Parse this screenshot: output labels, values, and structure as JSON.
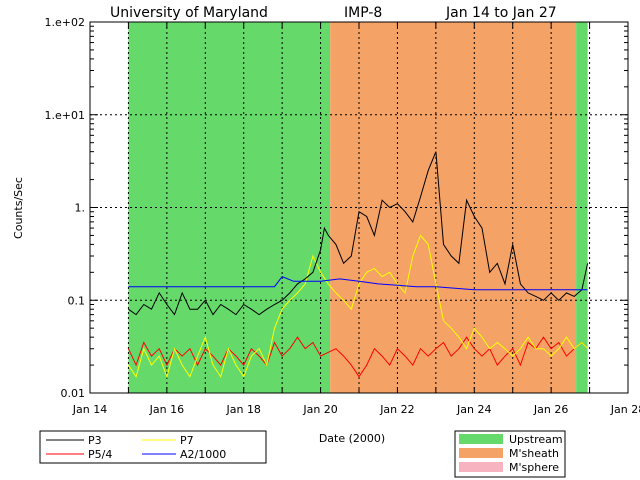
{
  "chart_data": {
    "type": "line",
    "title_parts": [
      "University of Maryland",
      "IMP-8",
      "Jan 14 to Jan 27"
    ],
    "xlabel": "Date (2000)",
    "ylabel": "Counts/Sec",
    "x_unit": "day of January 2000",
    "xlim": [
      14,
      28
    ],
    "ylim": [
      0.01,
      100
    ],
    "yscale": "log",
    "grid": true,
    "x_ticks": [
      {
        "value": 14,
        "label": "Jan 14"
      },
      {
        "value": 16,
        "label": "Jan 16"
      },
      {
        "value": 18,
        "label": "Jan 18"
      },
      {
        "value": 20,
        "label": "Jan 20"
      },
      {
        "value": 22,
        "label": "Jan 22"
      },
      {
        "value": 24,
        "label": "Jan 24"
      },
      {
        "value": 26,
        "label": "Jan 26"
      },
      {
        "value": 28,
        "label": "Jan 28"
      }
    ],
    "y_ticks": [
      {
        "value": 0.01,
        "label": "0.01"
      },
      {
        "value": 0.1,
        "label": "0.1"
      },
      {
        "value": 1,
        "label": "1."
      },
      {
        "value": 10,
        "label": "1.e+01"
      },
      {
        "value": 100,
        "label": "1.e+02"
      }
    ],
    "regions": [
      {
        "name": "Upstream",
        "start": 15.0,
        "end": 20.25,
        "color": "#66d96b"
      },
      {
        "name": "M'sheath",
        "start": 20.25,
        "end": 26.65,
        "color": "#f4a266"
      },
      {
        "name": "Upstream",
        "start": 26.65,
        "end": 26.95,
        "color": "#66d96b"
      }
    ],
    "region_legend": [
      {
        "label": "Upstream",
        "color": "#66d96b"
      },
      {
        "label": "M'sheath",
        "color": "#f4a266"
      },
      {
        "label": "M'sphere",
        "color": "#f7b3c0"
      }
    ],
    "series": [
      {
        "name": "P3",
        "color": "#000000",
        "x": [
          15.0,
          15.2,
          15.4,
          15.6,
          15.8,
          16.0,
          16.2,
          16.4,
          16.6,
          16.8,
          17.0,
          17.2,
          17.4,
          17.6,
          17.8,
          18.0,
          18.2,
          18.4,
          18.6,
          18.8,
          19.0,
          19.2,
          19.4,
          19.6,
          19.8,
          20.0,
          20.1,
          20.2,
          20.4,
          20.6,
          20.8,
          21.0,
          21.2,
          21.4,
          21.6,
          21.8,
          22.0,
          22.2,
          22.4,
          22.6,
          22.8,
          23.0,
          23.2,
          23.4,
          23.6,
          23.8,
          24.0,
          24.2,
          24.4,
          24.6,
          24.8,
          25.0,
          25.2,
          25.4,
          25.6,
          25.8,
          26.0,
          26.2,
          26.4,
          26.6,
          26.8,
          26.95
        ],
        "y": [
          0.08,
          0.07,
          0.09,
          0.08,
          0.12,
          0.09,
          0.07,
          0.12,
          0.08,
          0.08,
          0.1,
          0.07,
          0.09,
          0.08,
          0.07,
          0.09,
          0.08,
          0.07,
          0.08,
          0.09,
          0.1,
          0.12,
          0.15,
          0.17,
          0.2,
          0.35,
          0.6,
          0.5,
          0.4,
          0.25,
          0.3,
          0.9,
          0.8,
          0.5,
          1.2,
          1.0,
          1.1,
          0.9,
          0.7,
          1.3,
          2.5,
          4.0,
          0.4,
          0.3,
          0.25,
          1.2,
          0.8,
          0.6,
          0.2,
          0.25,
          0.15,
          0.4,
          0.15,
          0.12,
          0.11,
          0.1,
          0.12,
          0.1,
          0.12,
          0.11,
          0.13,
          0.25
        ]
      },
      {
        "name": "P5/4",
        "color": "#ff0000",
        "x": [
          15.0,
          15.2,
          15.4,
          15.6,
          15.8,
          16.0,
          16.2,
          16.4,
          16.6,
          16.8,
          17.0,
          17.2,
          17.4,
          17.6,
          17.8,
          18.0,
          18.2,
          18.4,
          18.6,
          18.8,
          19.0,
          19.2,
          19.4,
          19.6,
          19.8,
          20.0,
          20.4,
          20.6,
          20.8,
          21.0,
          21.2,
          21.4,
          21.6,
          21.8,
          22.0,
          22.2,
          22.4,
          22.6,
          22.8,
          23.0,
          23.2,
          23.4,
          23.6,
          23.8,
          24.0,
          24.2,
          24.4,
          24.6,
          24.8,
          25.0,
          25.2,
          25.4,
          25.6,
          25.8,
          26.0,
          26.2,
          26.4,
          26.6,
          26.8,
          26.95
        ],
        "y": [
          0.03,
          0.02,
          0.035,
          0.025,
          0.03,
          0.02,
          0.03,
          0.025,
          0.03,
          0.02,
          0.03,
          0.025,
          0.02,
          0.03,
          0.025,
          0.02,
          0.03,
          0.025,
          0.02,
          0.035,
          0.025,
          0.03,
          0.04,
          0.03,
          0.035,
          0.025,
          0.03,
          0.025,
          0.02,
          0.015,
          0.02,
          0.03,
          0.025,
          0.02,
          0.03,
          0.025,
          0.02,
          0.03,
          0.025,
          0.03,
          0.035,
          0.025,
          0.03,
          0.04,
          0.03,
          0.025,
          0.03,
          0.02,
          0.025,
          0.03,
          0.02,
          0.035,
          0.03,
          0.04,
          0.03,
          0.035,
          0.025,
          0.03,
          0.035,
          0.03
        ]
      },
      {
        "name": "P7",
        "color": "#ffff00",
        "x": [
          15.0,
          15.2,
          15.4,
          15.6,
          15.8,
          16.0,
          16.2,
          16.4,
          16.6,
          16.8,
          17.0,
          17.2,
          17.4,
          17.6,
          17.8,
          18.0,
          18.2,
          18.4,
          18.6,
          18.8,
          19.0,
          19.2,
          19.4,
          19.6,
          19.8,
          20.0,
          20.2,
          20.4,
          20.6,
          20.8,
          21.0,
          21.2,
          21.4,
          21.6,
          21.8,
          22.0,
          22.2,
          22.4,
          22.6,
          22.8,
          23.0,
          23.2,
          23.4,
          23.6,
          23.8,
          24.0,
          24.2,
          24.4,
          24.6,
          24.8,
          25.0,
          25.2,
          25.4,
          25.6,
          25.8,
          26.0,
          26.2,
          26.4,
          26.6,
          26.8,
          26.95
        ],
        "y": [
          0.02,
          0.015,
          0.03,
          0.02,
          0.025,
          0.015,
          0.03,
          0.02,
          0.015,
          0.025,
          0.04,
          0.02,
          0.015,
          0.03,
          0.02,
          0.015,
          0.025,
          0.03,
          0.02,
          0.05,
          0.08,
          0.1,
          0.12,
          0.15,
          0.3,
          0.2,
          0.15,
          0.12,
          0.1,
          0.08,
          0.15,
          0.2,
          0.22,
          0.18,
          0.2,
          0.15,
          0.12,
          0.3,
          0.5,
          0.4,
          0.15,
          0.06,
          0.05,
          0.04,
          0.03,
          0.05,
          0.04,
          0.03,
          0.035,
          0.03,
          0.025,
          0.03,
          0.04,
          0.03,
          0.03,
          0.025,
          0.03,
          0.04,
          0.03,
          0.035,
          0.03
        ]
      },
      {
        "name": "A2/1000",
        "color": "#0000ff",
        "x": [
          15.0,
          16.0,
          17.0,
          18.0,
          18.8,
          19.0,
          19.3,
          19.6,
          20.0,
          20.5,
          21.0,
          21.5,
          22.0,
          22.5,
          23.0,
          23.5,
          24.0,
          25.0,
          26.0,
          26.95
        ],
        "y": [
          0.14,
          0.14,
          0.14,
          0.14,
          0.14,
          0.18,
          0.16,
          0.16,
          0.16,
          0.17,
          0.16,
          0.15,
          0.145,
          0.14,
          0.14,
          0.135,
          0.13,
          0.13,
          0.13,
          0.13
        ]
      }
    ],
    "legend": [
      "P3",
      "P5/4",
      "P7",
      "A2/1000"
    ]
  }
}
